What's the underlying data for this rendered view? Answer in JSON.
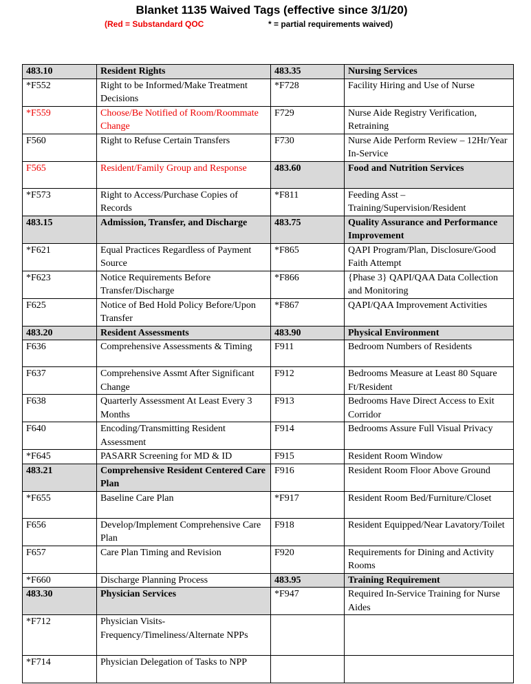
{
  "header": {
    "title": "Blanket 1135 Waived Tags (effective since 3/1/20)",
    "legend_red": "(Red = Substandard QOC",
    "legend_star": "* = partial requirements waived)"
  },
  "table": {
    "rows": [
      [
        "483.10",
        "Resident Rights",
        "483.35",
        "Nursing Services"
      ],
      [
        "*F552",
        "Right to be Informed/Make Treatment Decisions",
        "*F728",
        "Facility Hiring and Use of Nurse"
      ],
      [
        "*F559",
        "Choose/Be Notified of Room/Roommate Change",
        "F729",
        "Nurse Aide Registry Verification, Retraining"
      ],
      [
        "F560",
        "Right to Refuse Certain Transfers",
        "F730",
        "Nurse Aide Perform Review – 12Hr/Year In-Service"
      ],
      [
        "F565",
        "Resident/Family Group and Response",
        "483.60",
        "Food and Nutrition Services"
      ],
      [
        "*F573",
        "Right to Access/Purchase Copies of Records",
        "*F811",
        "Feeding Asst – Training/Supervision/Resident"
      ],
      [
        "483.15",
        "Admission, Transfer, and Discharge",
        "483.75",
        "Quality Assurance and Performance Improvement"
      ],
      [
        "*F621",
        "Equal Practices Regardless of Payment Source",
        "*F865",
        "QAPI Program/Plan, Disclosure/Good Faith Attempt"
      ],
      [
        "*F623",
        "Notice Requirements Before Transfer/Discharge",
        "*F866",
        "{Phase 3} QAPI/QAA Data Collection and Monitoring"
      ],
      [
        "F625",
        "Notice of Bed Hold Policy Before/Upon Transfer",
        "*F867",
        "QAPI/QAA Improvement Activities"
      ],
      [
        "483.20",
        "Resident Assessments",
        "483.90",
        "Physical Environment"
      ],
      [
        "F636",
        "Comprehensive Assessments & Timing",
        "F911",
        "Bedroom Numbers of Residents"
      ],
      [
        "F637",
        "Comprehensive Assmt After Significant Change",
        "F912",
        "Bedrooms Measure at Least 80 Square Ft/Resident"
      ],
      [
        "F638",
        "Quarterly Assessment At Least Every 3 Months",
        "F913",
        "Bedrooms Have Direct Access to Exit Corridor"
      ],
      [
        "F640",
        "Encoding/Transmitting Resident Assessment",
        "F914",
        "Bedrooms Assure Full Visual Privacy"
      ],
      [
        "*F645",
        "PASARR Screening for MD & ID",
        "F915",
        "Resident Room Window"
      ],
      [
        "483.21",
        "Comprehensive Resident Centered Care Plan",
        "F916",
        "Resident Room Floor Above Ground"
      ],
      [
        "*F655",
        "Baseline Care Plan",
        "*F917",
        "Resident Room Bed/Furniture/Closet"
      ],
      [
        "F656",
        "Develop/Implement Comprehensive Care Plan",
        "F918",
        "Resident Equipped/Near Lavatory/Toilet"
      ],
      [
        "F657",
        "Care Plan Timing and Revision",
        "F920",
        "Requirements for Dining and Activity Rooms"
      ],
      [
        "*F660",
        "Discharge Planning Process",
        "483.95",
        "Training Requirement"
      ],
      [
        "483.30",
        "Physician Services",
        "*F947",
        "Required In-Service Training for Nurse Aides"
      ],
      [
        "*F712",
        "Physician Visits-Frequency/Timeliness/Alternate NPPs",
        null,
        null
      ],
      [
        "*F714",
        "Physician Delegation of Tasks to NPP",
        null,
        null
      ]
    ]
  }
}
